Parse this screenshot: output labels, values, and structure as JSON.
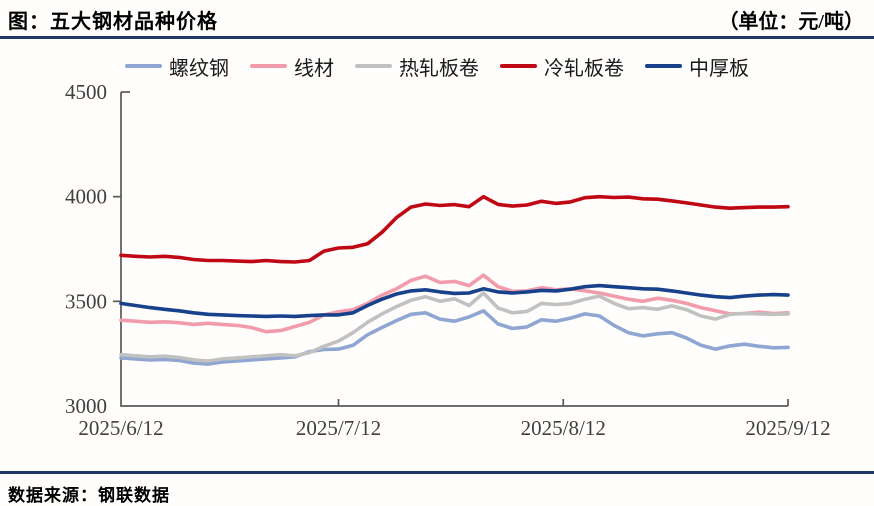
{
  "header": {
    "title": "图：五大钢材品种价格",
    "unit": "（单位：元/吨）"
  },
  "footer": {
    "source": "数据来源：钢联数据"
  },
  "chart_data": {
    "type": "line",
    "title": "五大钢材品种价格",
    "unit_label": "元/吨",
    "grid": false,
    "legend_position": "top",
    "axis_color": "#595959",
    "tick_label_color": "#404040",
    "ylim": [
      3000,
      4500
    ],
    "y_ticks": [
      3000,
      3500,
      4000,
      4500
    ],
    "x_tick_labels": [
      "2025/6/12",
      "2025/7/12",
      "2025/8/12",
      "2025/9/12"
    ],
    "x_tick_days": [
      0,
      30,
      61,
      92
    ],
    "x_span_days": 92,
    "sample_step_days": 2,
    "series": [
      {
        "id": "rebar",
        "name": "螺纹钢",
        "color": "#8ea6d1",
        "values": [
          3230,
          3225,
          3220,
          3222,
          3218,
          3205,
          3200,
          3210,
          3215,
          3220,
          3225,
          3230,
          3235,
          3260,
          3270,
          3272,
          3290,
          3340,
          3375,
          3408,
          3438,
          3445,
          3415,
          3405,
          3425,
          3455,
          3392,
          3370,
          3378,
          3412,
          3405,
          3420,
          3440,
          3430,
          3385,
          3350,
          3335,
          3345,
          3350,
          3325,
          3290,
          3272,
          3287,
          3295,
          3285,
          3278,
          3280
        ]
      },
      {
        "id": "wire-rod",
        "name": "线材",
        "color": "#f29cab",
        "values": [
          3410,
          3405,
          3400,
          3402,
          3398,
          3390,
          3395,
          3390,
          3385,
          3375,
          3355,
          3360,
          3380,
          3400,
          3435,
          3450,
          3460,
          3490,
          3530,
          3560,
          3600,
          3620,
          3590,
          3595,
          3575,
          3625,
          3570,
          3548,
          3550,
          3565,
          3555,
          3560,
          3550,
          3540,
          3525,
          3510,
          3500,
          3515,
          3505,
          3490,
          3470,
          3455,
          3440,
          3442,
          3448,
          3442,
          3445
        ]
      },
      {
        "id": "hot-rolled-coil",
        "name": "热轧板卷",
        "color": "#c1c1c1",
        "values": [
          3245,
          3240,
          3235,
          3238,
          3232,
          3220,
          3215,
          3225,
          3230,
          3235,
          3240,
          3245,
          3240,
          3255,
          3285,
          3310,
          3350,
          3400,
          3440,
          3475,
          3505,
          3522,
          3500,
          3512,
          3480,
          3540,
          3468,
          3445,
          3452,
          3490,
          3485,
          3490,
          3510,
          3525,
          3490,
          3465,
          3470,
          3462,
          3478,
          3460,
          3430,
          3415,
          3438,
          3442,
          3440,
          3438,
          3440
        ]
      },
      {
        "id": "cold-rolled-coil",
        "name": "冷轧板卷",
        "color": "#c00714",
        "values": [
          3720,
          3715,
          3712,
          3715,
          3710,
          3700,
          3695,
          3695,
          3692,
          3690,
          3695,
          3690,
          3688,
          3695,
          3740,
          3755,
          3758,
          3775,
          3830,
          3900,
          3950,
          3965,
          3958,
          3962,
          3952,
          4000,
          3963,
          3955,
          3960,
          3978,
          3968,
          3975,
          3995,
          4000,
          3996,
          3998,
          3990,
          3988,
          3980,
          3970,
          3960,
          3950,
          3945,
          3948,
          3950,
          3950,
          3952
        ]
      },
      {
        "id": "medium-plate",
        "name": "中厚板",
        "color": "#17428b",
        "values": [
          3490,
          3480,
          3470,
          3462,
          3455,
          3445,
          3438,
          3435,
          3432,
          3430,
          3428,
          3430,
          3428,
          3432,
          3435,
          3435,
          3445,
          3480,
          3510,
          3535,
          3550,
          3555,
          3545,
          3538,
          3540,
          3560,
          3545,
          3540,
          3545,
          3552,
          3550,
          3558,
          3570,
          3575,
          3570,
          3565,
          3560,
          3558,
          3550,
          3540,
          3530,
          3522,
          3518,
          3525,
          3530,
          3532,
          3530
        ]
      }
    ]
  }
}
